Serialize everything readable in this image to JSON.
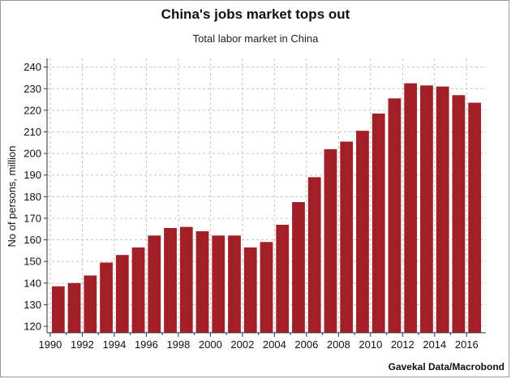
{
  "chart_data": {
    "type": "bar",
    "title": "China's jobs market tops out",
    "subtitle": "Total labor market in China",
    "xlabel": "",
    "ylabel": "No of persons, million",
    "source": "Gavekal Data/Macrobond",
    "categories": [
      "1990",
      "1991",
      "1992",
      "1993",
      "1994",
      "1995",
      "1996",
      "1997",
      "1998",
      "1999",
      "2000",
      "2001",
      "2002",
      "2003",
      "2004",
      "2005",
      "2006",
      "2007",
      "2008",
      "2009",
      "2010",
      "2011",
      "2012",
      "2013",
      "2014",
      "2015",
      "2016"
    ],
    "values": [
      138.5,
      140,
      143.5,
      149.5,
      153,
      156.5,
      162,
      165.5,
      166,
      164,
      162,
      162,
      156.5,
      159,
      167,
      177.5,
      189,
      202,
      205.5,
      210.5,
      218.5,
      225.5,
      232.5,
      231.5,
      231,
      227,
      223.5
    ],
    "xticks": [
      "1990",
      "1992",
      "1994",
      "1996",
      "1998",
      "2000",
      "2002",
      "2004",
      "2006",
      "2008",
      "2010",
      "2012",
      "2014",
      "2016"
    ],
    "yticks": [
      120,
      130,
      140,
      150,
      160,
      170,
      180,
      190,
      200,
      210,
      220,
      230,
      240
    ],
    "ylim": [
      117,
      244
    ],
    "xlim": [
      1989.8,
      2017.2
    ],
    "bar_color": "#a11f26",
    "grid": true
  }
}
